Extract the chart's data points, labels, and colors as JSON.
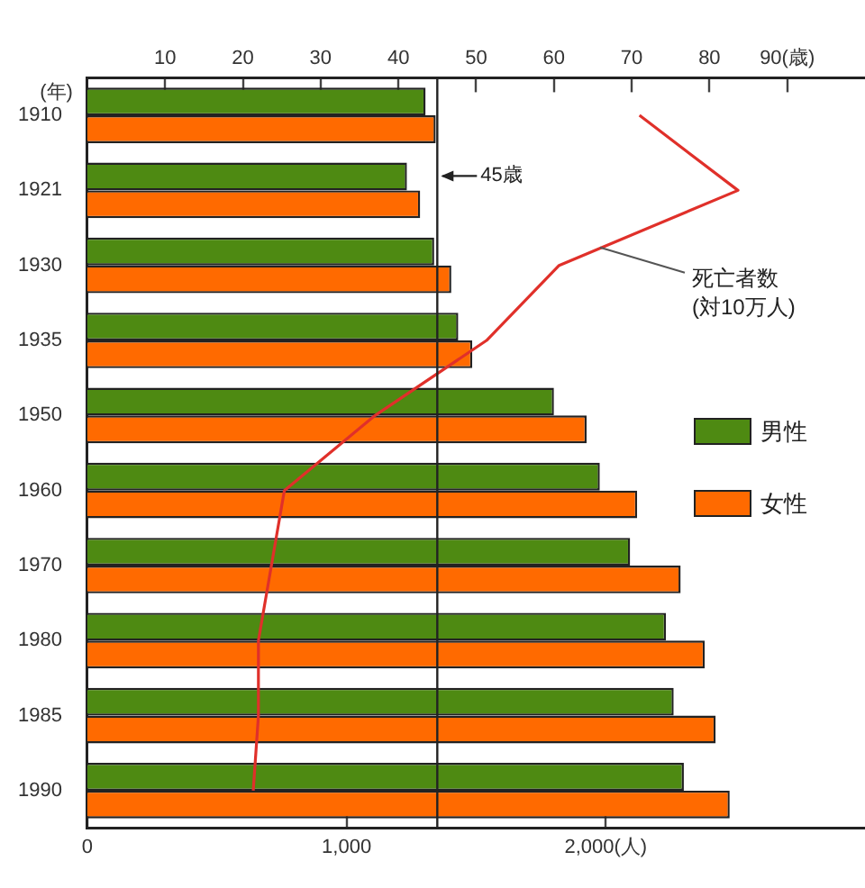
{
  "chart_data": {
    "type": "bar",
    "orientation": "horizontal",
    "ylabel": "(年)",
    "categories": [
      "1910",
      "1921",
      "1930",
      "1935",
      "1950",
      "1960",
      "1970",
      "1980",
      "1985",
      "1990"
    ],
    "series": [
      {
        "name": "男性",
        "color": "#4e8a12",
        "axis": "x2",
        "values": [
          43.5,
          41.1,
          44.6,
          47.7,
          60,
          65.9,
          69.8,
          74.4,
          75.4,
          76.7
        ]
      },
      {
        "name": "女性",
        "color": "#ff6a00",
        "axis": "x2",
        "values": [
          44.8,
          42.8,
          46.8,
          49.5,
          64.2,
          70.7,
          76.3,
          79.4,
          80.8,
          82.6
        ]
      },
      {
        "name": "死亡者数(対10万人)",
        "type": "line",
        "color": "#e0302a",
        "marker": "none",
        "values": [
          2130,
          2510,
          1820,
          1540,
          1110,
          760,
          710,
          660,
          660,
          640
        ]
      }
    ],
    "xlim": [
      0,
      3000
    ],
    "xticks": [
      0,
      {
        "value": 1000,
        "label": "1,000"
      },
      {
        "value": 2000,
        "label": "2,000(人)"
      }
    ],
    "x2lim": [
      0,
      100
    ],
    "x2ticks": [
      10,
      20,
      30,
      40,
      50,
      60,
      70,
      80,
      {
        "value": 90,
        "label": "90(歳)"
      }
    ],
    "ref_lines": [
      {
        "axis": "x2",
        "value": 45,
        "label": "45歳",
        "color": "#222222"
      }
    ],
    "grid": false,
    "legend": "right"
  }
}
